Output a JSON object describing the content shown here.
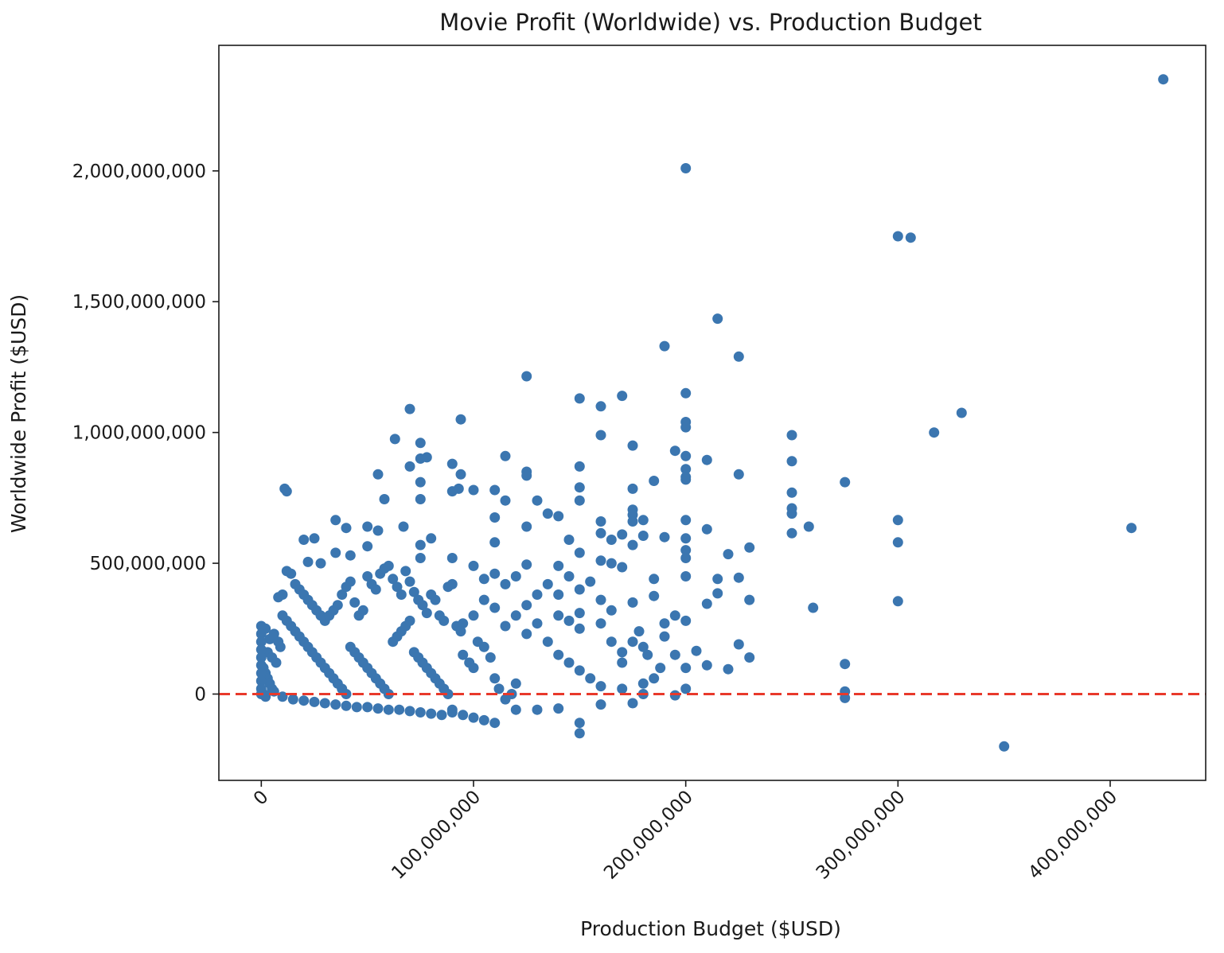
{
  "chart_data": {
    "type": "scatter",
    "title": "Movie Profit (Worldwide) vs. Production Budget",
    "xlabel": "Production Budget ($USD)",
    "ylabel": "Worldwide Profit ($USD)",
    "xlim": [
      -20000000,
      445000000
    ],
    "ylim": [
      -330000000,
      2480000000
    ],
    "xticks": [
      0,
      100000000,
      200000000,
      300000000,
      400000000
    ],
    "xtick_labels": [
      "0",
      "100,000,000",
      "200,000,000",
      "300,000,000",
      "400,000,000"
    ],
    "yticks": [
      0,
      500000000,
      1000000000,
      1500000000,
      2000000000
    ],
    "ytick_labels": [
      "0",
      "500,000,000",
      "1,000,000,000",
      "1,500,000,000",
      "2,000,000,000"
    ],
    "grid": false,
    "point_color": "#3b76b0",
    "reference_line": {
      "y": 0,
      "color": "#e8392b",
      "style": "dashed"
    },
    "points": [
      [
        425000000,
        2350000000
      ],
      [
        200000000,
        2010000000
      ],
      [
        300000000,
        1750000000
      ],
      [
        306000000,
        1745000000
      ],
      [
        215000000,
        1435000000
      ],
      [
        190000000,
        1330000000
      ],
      [
        225000000,
        1290000000
      ],
      [
        125000000,
        1215000000
      ],
      [
        200000000,
        1150000000
      ],
      [
        170000000,
        1140000000
      ],
      [
        150000000,
        1130000000
      ],
      [
        160000000,
        1100000000
      ],
      [
        70000000,
        1090000000
      ],
      [
        94000000,
        1050000000
      ],
      [
        200000000,
        1040000000
      ],
      [
        200000000,
        1020000000
      ],
      [
        330000000,
        1075000000
      ],
      [
        317000000,
        1000000000
      ],
      [
        250000000,
        990000000
      ],
      [
        160000000,
        990000000
      ],
      [
        63000000,
        975000000
      ],
      [
        75000000,
        960000000
      ],
      [
        175000000,
        950000000
      ],
      [
        195000000,
        930000000
      ],
      [
        115000000,
        910000000
      ],
      [
        200000000,
        910000000
      ],
      [
        75000000,
        900000000
      ],
      [
        78000000,
        905000000
      ],
      [
        210000000,
        895000000
      ],
      [
        250000000,
        890000000
      ],
      [
        90000000,
        880000000
      ],
      [
        70000000,
        870000000
      ],
      [
        150000000,
        870000000
      ],
      [
        200000000,
        860000000
      ],
      [
        125000000,
        850000000
      ],
      [
        225000000,
        840000000
      ],
      [
        55000000,
        840000000
      ],
      [
        94000000,
        840000000
      ],
      [
        125000000,
        835000000
      ],
      [
        200000000,
        830000000
      ],
      [
        200000000,
        820000000
      ],
      [
        185000000,
        815000000
      ],
      [
        275000000,
        810000000
      ],
      [
        75000000,
        810000000
      ],
      [
        150000000,
        790000000
      ],
      [
        93000000,
        785000000
      ],
      [
        175000000,
        785000000
      ],
      [
        11000000,
        785000000
      ],
      [
        12000000,
        775000000
      ],
      [
        90000000,
        775000000
      ],
      [
        100000000,
        780000000
      ],
      [
        110000000,
        780000000
      ],
      [
        250000000,
        770000000
      ],
      [
        58000000,
        745000000
      ],
      [
        75000000,
        745000000
      ],
      [
        115000000,
        740000000
      ],
      [
        130000000,
        740000000
      ],
      [
        150000000,
        740000000
      ],
      [
        250000000,
        710000000
      ],
      [
        175000000,
        705000000
      ],
      [
        250000000,
        690000000
      ],
      [
        135000000,
        690000000
      ],
      [
        140000000,
        680000000
      ],
      [
        175000000,
        685000000
      ],
      [
        110000000,
        675000000
      ],
      [
        300000000,
        665000000
      ],
      [
        200000000,
        665000000
      ],
      [
        35000000,
        665000000
      ],
      [
        160000000,
        660000000
      ],
      [
        175000000,
        660000000
      ],
      [
        180000000,
        665000000
      ],
      [
        410000000,
        635000000
      ],
      [
        258000000,
        640000000
      ],
      [
        67000000,
        640000000
      ],
      [
        50000000,
        640000000
      ],
      [
        40000000,
        635000000
      ],
      [
        210000000,
        630000000
      ],
      [
        125000000,
        640000000
      ],
      [
        55000000,
        625000000
      ],
      [
        250000000,
        615000000
      ],
      [
        160000000,
        615000000
      ],
      [
        170000000,
        610000000
      ],
      [
        180000000,
        605000000
      ],
      [
        190000000,
        600000000
      ],
      [
        80000000,
        595000000
      ],
      [
        200000000,
        595000000
      ],
      [
        145000000,
        590000000
      ],
      [
        165000000,
        590000000
      ],
      [
        20000000,
        590000000
      ],
      [
        25000000,
        595000000
      ],
      [
        300000000,
        580000000
      ],
      [
        110000000,
        580000000
      ],
      [
        75000000,
        570000000
      ],
      [
        175000000,
        570000000
      ],
      [
        50000000,
        565000000
      ],
      [
        230000000,
        560000000
      ],
      [
        200000000,
        550000000
      ],
      [
        150000000,
        540000000
      ],
      [
        220000000,
        535000000
      ],
      [
        35000000,
        540000000
      ],
      [
        42000000,
        530000000
      ],
      [
        90000000,
        520000000
      ],
      [
        160000000,
        510000000
      ],
      [
        165000000,
        500000000
      ],
      [
        75000000,
        520000000
      ],
      [
        22000000,
        505000000
      ],
      [
        28000000,
        500000000
      ],
      [
        100000000,
        490000000
      ],
      [
        125000000,
        495000000
      ],
      [
        140000000,
        490000000
      ],
      [
        170000000,
        485000000
      ],
      [
        200000000,
        520000000
      ],
      [
        260000000,
        330000000
      ],
      [
        300000000,
        355000000
      ],
      [
        215000000,
        385000000
      ],
      [
        225000000,
        445000000
      ],
      [
        215000000,
        440000000
      ],
      [
        200000000,
        450000000
      ],
      [
        185000000,
        440000000
      ],
      [
        230000000,
        360000000
      ],
      [
        210000000,
        345000000
      ],
      [
        225000000,
        190000000
      ],
      [
        230000000,
        140000000
      ],
      [
        220000000,
        95000000
      ],
      [
        210000000,
        110000000
      ],
      [
        205000000,
        165000000
      ],
      [
        200000000,
        100000000
      ],
      [
        195000000,
        150000000
      ],
      [
        275000000,
        115000000
      ],
      [
        275000000,
        10000000
      ],
      [
        275000000,
        -15000000
      ],
      [
        350000000,
        -200000000
      ],
      [
        150000000,
        -110000000
      ],
      [
        150000000,
        -150000000
      ],
      [
        110000000,
        -110000000
      ],
      [
        105000000,
        -100000000
      ],
      [
        100000000,
        -90000000
      ],
      [
        95000000,
        -80000000
      ],
      [
        90000000,
        -70000000
      ],
      [
        120000000,
        -60000000
      ],
      [
        130000000,
        -60000000
      ],
      [
        140000000,
        -55000000
      ],
      [
        160000000,
        -40000000
      ],
      [
        175000000,
        -35000000
      ],
      [
        200000000,
        20000000
      ],
      [
        195000000,
        -5000000
      ],
      [
        180000000,
        40000000
      ],
      [
        185000000,
        60000000
      ],
      [
        170000000,
        120000000
      ],
      [
        175000000,
        200000000
      ],
      [
        180000000,
        180000000
      ],
      [
        190000000,
        220000000
      ],
      [
        190000000,
        270000000
      ],
      [
        195000000,
        300000000
      ],
      [
        200000000,
        280000000
      ],
      [
        185000000,
        375000000
      ],
      [
        175000000,
        350000000
      ],
      [
        165000000,
        320000000
      ],
      [
        160000000,
        360000000
      ],
      [
        150000000,
        310000000
      ],
      [
        150000000,
        400000000
      ],
      [
        150000000,
        250000000
      ],
      [
        145000000,
        280000000
      ],
      [
        140000000,
        300000000
      ],
      [
        130000000,
        270000000
      ],
      [
        125000000,
        230000000
      ],
      [
        120000000,
        300000000
      ],
      [
        115000000,
        260000000
      ],
      [
        110000000,
        330000000
      ],
      [
        105000000,
        360000000
      ],
      [
        100000000,
        300000000
      ],
      [
        95000000,
        270000000
      ],
      [
        135000000,
        200000000
      ],
      [
        140000000,
        150000000
      ],
      [
        145000000,
        120000000
      ],
      [
        150000000,
        90000000
      ],
      [
        155000000,
        60000000
      ],
      [
        160000000,
        30000000
      ],
      [
        170000000,
        20000000
      ],
      [
        180000000,
        0
      ],
      [
        130000000,
        380000000
      ],
      [
        135000000,
        420000000
      ],
      [
        120000000,
        450000000
      ],
      [
        115000000,
        420000000
      ],
      [
        110000000,
        460000000
      ],
      [
        105000000,
        440000000
      ],
      [
        125000000,
        340000000
      ],
      [
        145000000,
        450000000
      ],
      [
        155000000,
        430000000
      ],
      [
        140000000,
        380000000
      ],
      [
        160000000,
        270000000
      ],
      [
        165000000,
        200000000
      ],
      [
        178000000,
        240000000
      ],
      [
        182000000,
        150000000
      ],
      [
        188000000,
        100000000
      ],
      [
        170000000,
        160000000
      ],
      [
        2000000,
        250000000
      ],
      [
        4000000,
        210000000
      ],
      [
        6000000,
        230000000
      ],
      [
        8000000,
        200000000
      ],
      [
        3000000,
        160000000
      ],
      [
        5000000,
        140000000
      ],
      [
        7000000,
        120000000
      ],
      [
        9000000,
        180000000
      ],
      [
        1000000,
        100000000
      ],
      [
        2000000,
        80000000
      ],
      [
        3000000,
        60000000
      ],
      [
        4000000,
        40000000
      ],
      [
        5000000,
        20000000
      ],
      [
        6000000,
        10000000
      ],
      [
        1000000,
        0
      ],
      [
        2000000,
        -10000000
      ],
      [
        10000000,
        380000000
      ],
      [
        8000000,
        370000000
      ],
      [
        12000000,
        470000000
      ],
      [
        14000000,
        460000000
      ],
      [
        16000000,
        420000000
      ],
      [
        18000000,
        400000000
      ],
      [
        20000000,
        380000000
      ],
      [
        22000000,
        360000000
      ],
      [
        24000000,
        340000000
      ],
      [
        26000000,
        320000000
      ],
      [
        28000000,
        300000000
      ],
      [
        30000000,
        280000000
      ],
      [
        32000000,
        300000000
      ],
      [
        34000000,
        320000000
      ],
      [
        36000000,
        340000000
      ],
      [
        38000000,
        380000000
      ],
      [
        40000000,
        410000000
      ],
      [
        42000000,
        430000000
      ],
      [
        44000000,
        350000000
      ],
      [
        46000000,
        300000000
      ],
      [
        48000000,
        320000000
      ],
      [
        50000000,
        450000000
      ],
      [
        52000000,
        420000000
      ],
      [
        54000000,
        400000000
      ],
      [
        56000000,
        460000000
      ],
      [
        58000000,
        480000000
      ],
      [
        60000000,
        490000000
      ],
      [
        62000000,
        440000000
      ],
      [
        64000000,
        410000000
      ],
      [
        66000000,
        380000000
      ],
      [
        68000000,
        470000000
      ],
      [
        70000000,
        430000000
      ],
      [
        72000000,
        390000000
      ],
      [
        74000000,
        360000000
      ],
      [
        76000000,
        340000000
      ],
      [
        78000000,
        310000000
      ],
      [
        80000000,
        380000000
      ],
      [
        82000000,
        360000000
      ],
      [
        84000000,
        300000000
      ],
      [
        86000000,
        280000000
      ],
      [
        88000000,
        410000000
      ],
      [
        90000000,
        420000000
      ],
      [
        92000000,
        260000000
      ],
      [
        94000000,
        240000000
      ],
      [
        10000000,
        300000000
      ],
      [
        12000000,
        280000000
      ],
      [
        14000000,
        260000000
      ],
      [
        16000000,
        240000000
      ],
      [
        18000000,
        220000000
      ],
      [
        20000000,
        200000000
      ],
      [
        22000000,
        180000000
      ],
      [
        24000000,
        160000000
      ],
      [
        26000000,
        140000000
      ],
      [
        28000000,
        120000000
      ],
      [
        30000000,
        100000000
      ],
      [
        32000000,
        80000000
      ],
      [
        34000000,
        60000000
      ],
      [
        36000000,
        40000000
      ],
      [
        38000000,
        20000000
      ],
      [
        40000000,
        0
      ],
      [
        42000000,
        180000000
      ],
      [
        44000000,
        160000000
      ],
      [
        46000000,
        140000000
      ],
      [
        48000000,
        120000000
      ],
      [
        50000000,
        100000000
      ],
      [
        52000000,
        80000000
      ],
      [
        54000000,
        60000000
      ],
      [
        56000000,
        40000000
      ],
      [
        58000000,
        20000000
      ],
      [
        60000000,
        0
      ],
      [
        62000000,
        200000000
      ],
      [
        64000000,
        220000000
      ],
      [
        66000000,
        240000000
      ],
      [
        68000000,
        260000000
      ],
      [
        70000000,
        280000000
      ],
      [
        72000000,
        160000000
      ],
      [
        74000000,
        140000000
      ],
      [
        76000000,
        120000000
      ],
      [
        78000000,
        100000000
      ],
      [
        80000000,
        80000000
      ],
      [
        82000000,
        60000000
      ],
      [
        84000000,
        40000000
      ],
      [
        86000000,
        20000000
      ],
      [
        88000000,
        0
      ],
      [
        15000000,
        -20000000
      ],
      [
        25000000,
        -30000000
      ],
      [
        35000000,
        -40000000
      ],
      [
        45000000,
        -50000000
      ],
      [
        55000000,
        -55000000
      ],
      [
        65000000,
        -60000000
      ],
      [
        75000000,
        -70000000
      ],
      [
        85000000,
        -80000000
      ],
      [
        10000000,
        -10000000
      ],
      [
        20000000,
        -25000000
      ],
      [
        30000000,
        -35000000
      ],
      [
        40000000,
        -45000000
      ],
      [
        50000000,
        -50000000
      ],
      [
        60000000,
        -60000000
      ],
      [
        70000000,
        -65000000
      ],
      [
        80000000,
        -75000000
      ],
      [
        90000000,
        -60000000
      ],
      [
        95000000,
        150000000
      ],
      [
        98000000,
        120000000
      ],
      [
        100000000,
        100000000
      ],
      [
        102000000,
        200000000
      ],
      [
        105000000,
        180000000
      ],
      [
        108000000,
        140000000
      ],
      [
        110000000,
        60000000
      ],
      [
        112000000,
        20000000
      ],
      [
        115000000,
        -20000000
      ],
      [
        118000000,
        0
      ],
      [
        120000000,
        40000000
      ],
      [
        0,
        260000000
      ],
      [
        0,
        230000000
      ],
      [
        0,
        200000000
      ],
      [
        0,
        170000000
      ],
      [
        0,
        140000000
      ],
      [
        0,
        110000000
      ],
      [
        0,
        80000000
      ],
      [
        0,
        50000000
      ],
      [
        0,
        20000000
      ],
      [
        0,
        0
      ]
    ]
  }
}
